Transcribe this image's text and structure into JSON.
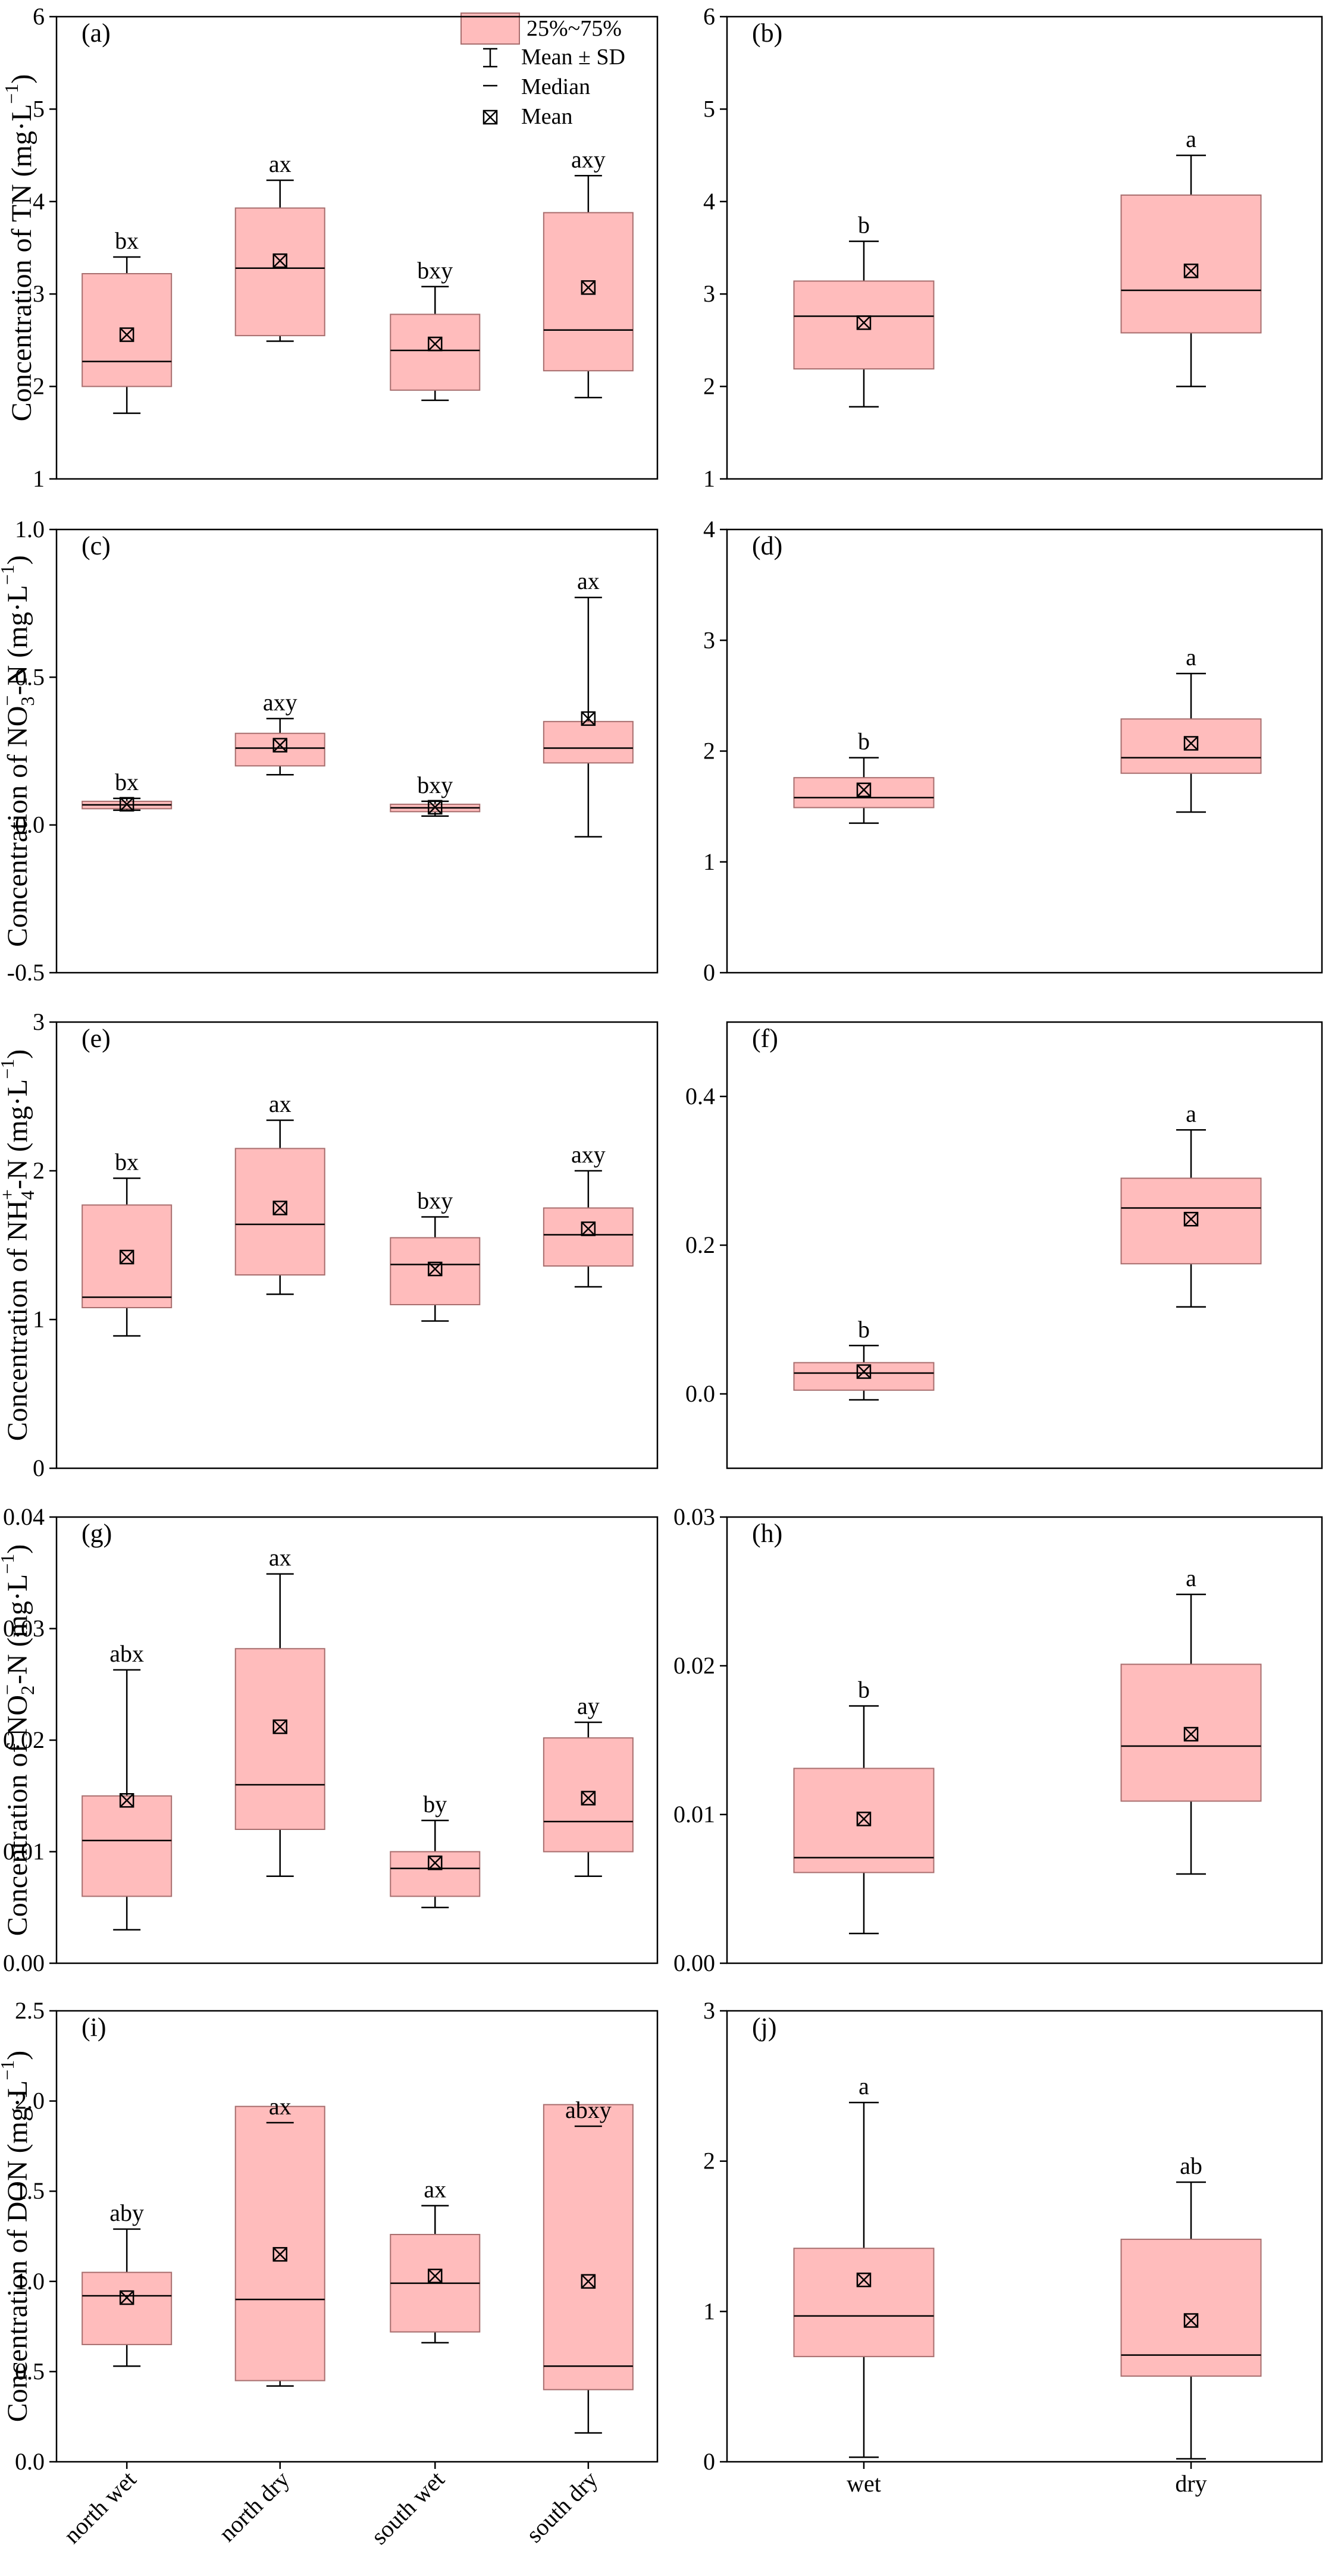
{
  "colors": {
    "box_fill": "#ffbcbc",
    "box_stroke": "#a86e6e",
    "axis": "#000000"
  },
  "legend": {
    "box_label": "25%~75%",
    "sd_label": "Mean ± SD",
    "median_label": "Median",
    "mean_label": "Mean"
  },
  "panels": [
    {
      "panel_label": "(a)",
      "ylabel": "Concentration of TN (mg·L",
      "ylabel_sup": "−1",
      "ylabel_tail": ")"
    },
    {
      "panel_label": "(b)"
    },
    {
      "panel_label": "(c)",
      "ylabel": "Concentration of NO",
      "ylabel_sub": "3",
      "ylabel_sup": "−",
      "ylabel_mid": "-N (mg·L",
      "ylabel_sup2": "−1",
      "ylabel_tail": ")"
    },
    {
      "panel_label": "(d)"
    },
    {
      "panel_label": "(e)",
      "ylabel": "Concentration of NH",
      "ylabel_sub": "4",
      "ylabel_sup": "+",
      "ylabel_mid": "-N (mg·L",
      "ylabel_sup2": "−1",
      "ylabel_tail": ")"
    },
    {
      "panel_label": "(f)"
    },
    {
      "panel_label": "(g)",
      "ylabel": "Concentration of NO",
      "ylabel_sub": "2",
      "ylabel_sup": "−",
      "ylabel_mid": "-N (mg·L",
      "ylabel_sup2": "−1",
      "ylabel_tail": ")"
    },
    {
      "panel_label": "(h)"
    },
    {
      "panel_label": "(i)",
      "ylabel": "Concentration of DON (mg·L",
      "ylabel_sup": "−1",
      "ylabel_tail": ")"
    },
    {
      "panel_label": "(j)"
    }
  ],
  "chart_data": [
    {
      "type": "box",
      "panel": "(a)",
      "ylim": [
        1,
        6
      ],
      "ticks": [
        1,
        2,
        3,
        4,
        5,
        6
      ],
      "tick_labels": [
        "1",
        "2",
        "3",
        "4",
        "5",
        "6"
      ],
      "categories": [
        "north wet",
        "north dry",
        "south wet",
        "south dry"
      ],
      "boxes": [
        {
          "q1": 2.0,
          "q3": 3.22,
          "median": 2.27,
          "mean": 2.56,
          "sd_low": 1.71,
          "sd_high": 3.4,
          "label": "bx"
        },
        {
          "q1": 2.55,
          "q3": 3.93,
          "median": 3.28,
          "mean": 3.36,
          "sd_low": 2.49,
          "sd_high": 4.23,
          "label": "ax"
        },
        {
          "q1": 1.96,
          "q3": 2.78,
          "median": 2.39,
          "mean": 2.46,
          "sd_low": 1.85,
          "sd_high": 3.08,
          "label": "bxy"
        },
        {
          "q1": 2.17,
          "q3": 3.88,
          "median": 2.61,
          "mean": 3.07,
          "sd_low": 1.88,
          "sd_high": 4.28,
          "label": "axy"
        }
      ]
    },
    {
      "type": "box",
      "panel": "(b)",
      "ylim": [
        1,
        6
      ],
      "ticks": [
        1,
        2,
        3,
        4,
        5,
        6
      ],
      "tick_labels": [
        "1",
        "2",
        "3",
        "4",
        "5",
        "6"
      ],
      "categories": [
        "wet",
        "dry"
      ],
      "boxes": [
        {
          "q1": 2.19,
          "q3": 3.14,
          "median": 2.76,
          "mean": 2.69,
          "sd_low": 1.78,
          "sd_high": 3.57,
          "label": "b"
        },
        {
          "q1": 2.58,
          "q3": 4.07,
          "median": 3.04,
          "mean": 3.25,
          "sd_low": 2.0,
          "sd_high": 4.5,
          "label": "a"
        }
      ]
    },
    {
      "type": "box",
      "panel": "(c)",
      "ylim": [
        -0.5,
        1.0
      ],
      "ticks": [
        -0.5,
        0.0,
        0.5,
        1.0
      ],
      "tick_labels": [
        "-0.5",
        "0.0",
        "0.5",
        "1.0"
      ],
      "categories": [
        "north wet",
        "north dry",
        "south wet",
        "south dry"
      ],
      "boxes": [
        {
          "q1": 0.055,
          "q3": 0.08,
          "median": 0.068,
          "mean": 0.07,
          "sd_low": 0.05,
          "sd_high": 0.09,
          "label": "bx"
        },
        {
          "q1": 0.2,
          "q3": 0.31,
          "median": 0.26,
          "mean": 0.27,
          "sd_low": 0.17,
          "sd_high": 0.36,
          "label": "axy"
        },
        {
          "q1": 0.045,
          "q3": 0.07,
          "median": 0.058,
          "mean": 0.06,
          "sd_low": 0.03,
          "sd_high": 0.08,
          "label": "bxy"
        },
        {
          "q1": 0.21,
          "q3": 0.35,
          "median": 0.26,
          "mean": 0.36,
          "sd_low": -0.04,
          "sd_high": 0.77,
          "label": "ax"
        }
      ]
    },
    {
      "type": "box",
      "panel": "(d)",
      "ylim": [
        0,
        4
      ],
      "ticks": [
        0,
        1,
        2,
        3,
        4
      ],
      "tick_labels": [
        "0",
        "1",
        "2",
        "3",
        "4"
      ],
      "categories": [
        "wet",
        "dry"
      ],
      "boxes": [
        {
          "q1": 1.49,
          "q3": 1.76,
          "median": 1.58,
          "mean": 1.65,
          "sd_low": 1.35,
          "sd_high": 1.94,
          "label": "b"
        },
        {
          "q1": 1.8,
          "q3": 2.29,
          "median": 1.94,
          "mean": 2.07,
          "sd_low": 1.45,
          "sd_high": 2.7,
          "label": "a"
        }
      ]
    },
    {
      "type": "box",
      "panel": "(e)",
      "ylim": [
        0,
        3
      ],
      "ticks": [
        0,
        1,
        2,
        3
      ],
      "tick_labels": [
        "0",
        "1",
        "2",
        "3"
      ],
      "categories": [
        "north wet",
        "north dry",
        "south wet",
        "south dry"
      ],
      "boxes": [
        {
          "q1": 1.08,
          "q3": 1.77,
          "median": 1.15,
          "mean": 1.42,
          "sd_low": 0.89,
          "sd_high": 1.95,
          "label": "bx"
        },
        {
          "q1": 1.3,
          "q3": 2.15,
          "median": 1.64,
          "mean": 1.75,
          "sd_low": 1.17,
          "sd_high": 2.34,
          "label": "ax"
        },
        {
          "q1": 1.1,
          "q3": 1.55,
          "median": 1.37,
          "mean": 1.34,
          "sd_low": 0.99,
          "sd_high": 1.69,
          "label": "bxy"
        },
        {
          "q1": 1.36,
          "q3": 1.75,
          "median": 1.57,
          "mean": 1.61,
          "sd_low": 1.22,
          "sd_high": 2.0,
          "label": "axy"
        }
      ]
    },
    {
      "type": "box",
      "panel": "(f)",
      "ylim": [
        -0.1,
        0.5
      ],
      "ticks": [
        0.0,
        0.2,
        0.4
      ],
      "tick_labels": [
        "0.0",
        "0.2",
        "0.4"
      ],
      "categories": [
        "wet",
        "dry"
      ],
      "boxes": [
        {
          "q1": 0.005,
          "q3": 0.042,
          "median": 0.028,
          "mean": 0.03,
          "sd_low": -0.008,
          "sd_high": 0.065,
          "label": "b"
        },
        {
          "q1": 0.175,
          "q3": 0.29,
          "median": 0.25,
          "mean": 0.235,
          "sd_low": 0.117,
          "sd_high": 0.355,
          "label": "a"
        }
      ]
    },
    {
      "type": "box",
      "panel": "(g)",
      "ylim": [
        0,
        0.04
      ],
      "ticks": [
        0,
        0.01,
        0.02,
        0.03,
        0.04
      ],
      "tick_labels": [
        "0.00",
        "0.01",
        "0.02",
        "0.03",
        "0.04"
      ],
      "categories": [
        "north wet",
        "north dry",
        "south wet",
        "south dry"
      ],
      "boxes": [
        {
          "q1": 0.006,
          "q3": 0.015,
          "median": 0.011,
          "mean": 0.0146,
          "sd_low": 0.003,
          "sd_high": 0.0263,
          "label": "abx"
        },
        {
          "q1": 0.012,
          "q3": 0.0282,
          "median": 0.016,
          "mean": 0.0212,
          "sd_low": 0.0078,
          "sd_high": 0.0349,
          "label": "ax"
        },
        {
          "q1": 0.006,
          "q3": 0.01,
          "median": 0.0085,
          "mean": 0.009,
          "sd_low": 0.005,
          "sd_high": 0.0128,
          "label": "by"
        },
        {
          "q1": 0.01,
          "q3": 0.0202,
          "median": 0.0127,
          "mean": 0.0148,
          "sd_low": 0.0078,
          "sd_high": 0.0216,
          "label": "ay"
        }
      ]
    },
    {
      "type": "box",
      "panel": "(h)",
      "ylim": [
        0,
        0.03
      ],
      "ticks": [
        0,
        0.01,
        0.02,
        0.03
      ],
      "tick_labels": [
        "0.00",
        "0.01",
        "0.02",
        "0.03"
      ],
      "categories": [
        "wet",
        "dry"
      ],
      "boxes": [
        {
          "q1": 0.0061,
          "q3": 0.0131,
          "median": 0.0071,
          "mean": 0.0097,
          "sd_low": 0.002,
          "sd_high": 0.0173,
          "label": "b"
        },
        {
          "q1": 0.0109,
          "q3": 0.0201,
          "median": 0.0146,
          "mean": 0.0154,
          "sd_low": 0.006,
          "sd_high": 0.0248,
          "label": "a"
        }
      ]
    },
    {
      "type": "box",
      "panel": "(i)",
      "ylim": [
        0,
        2.5
      ],
      "ticks": [
        0,
        0.5,
        1.0,
        1.5,
        2.0,
        2.5
      ],
      "tick_labels": [
        "0.0",
        "0.5",
        "1.0",
        "1.5",
        "2.0",
        "2.5"
      ],
      "categories": [
        "north wet",
        "north dry",
        "south wet",
        "south dry"
      ],
      "boxes": [
        {
          "q1": 0.65,
          "q3": 1.05,
          "median": 0.92,
          "mean": 0.91,
          "sd_low": 0.53,
          "sd_high": 1.29,
          "label": "aby"
        },
        {
          "q1": 0.45,
          "q3": 1.97,
          "median": 0.9,
          "mean": 1.15,
          "sd_low": 0.42,
          "sd_high": 1.88,
          "label": "ax"
        },
        {
          "q1": 0.72,
          "q3": 1.26,
          "median": 0.99,
          "mean": 1.03,
          "sd_low": 0.66,
          "sd_high": 1.42,
          "label": "ax"
        },
        {
          "q1": 0.4,
          "q3": 1.98,
          "median": 0.53,
          "mean": 1.0,
          "sd_low": 0.16,
          "sd_high": 1.86,
          "label": "abxy"
        }
      ]
    },
    {
      "type": "box",
      "panel": "(j)",
      "ylim": [
        0,
        3
      ],
      "ticks": [
        0,
        1,
        2,
        3
      ],
      "tick_labels": [
        "0",
        "1",
        "2",
        "3"
      ],
      "categories": [
        "wet",
        "dry"
      ],
      "boxes": [
        {
          "q1": 0.7,
          "q3": 1.42,
          "median": 0.97,
          "mean": 1.21,
          "sd_low": 0.03,
          "sd_high": 2.39,
          "label": "a"
        },
        {
          "q1": 0.57,
          "q3": 1.48,
          "median": 0.71,
          "mean": 0.94,
          "sd_low": 0.02,
          "sd_high": 1.86,
          "label": "ab"
        }
      ]
    }
  ]
}
